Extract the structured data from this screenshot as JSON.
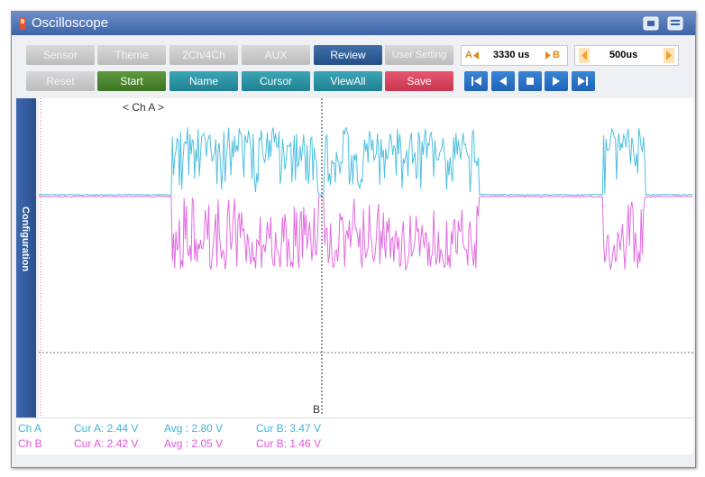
{
  "window": {
    "title": "Oscilloscope"
  },
  "toolbar": {
    "row1": [
      "Sensor",
      "Theme",
      "2Ch/4Ch",
      "AUX",
      "Review",
      "User Setting"
    ],
    "cursor_a": "A",
    "cursor_time": "3330 us",
    "cursor_b": "B",
    "timebase": "500us",
    "row2": [
      "Reset",
      "Start",
      "Name",
      "Cursor",
      "ViewAll",
      "Save"
    ]
  },
  "side_panel": "Configuration",
  "plot": {
    "channel_label": "< Ch A >",
    "cursor_label": "B"
  },
  "readouts": [
    {
      "channel": "Ch A",
      "cur_a": "Cur A: 2.44 V",
      "avg": "Avg : 2.80 V",
      "cur_b": "Cur B: 3.47 V"
    },
    {
      "channel": "Ch B",
      "cur_a": "Cur A: 2.42 V",
      "avg": "Avg : 2.05 V",
      "cur_b": "Cur B: 1.46 V"
    }
  ]
}
